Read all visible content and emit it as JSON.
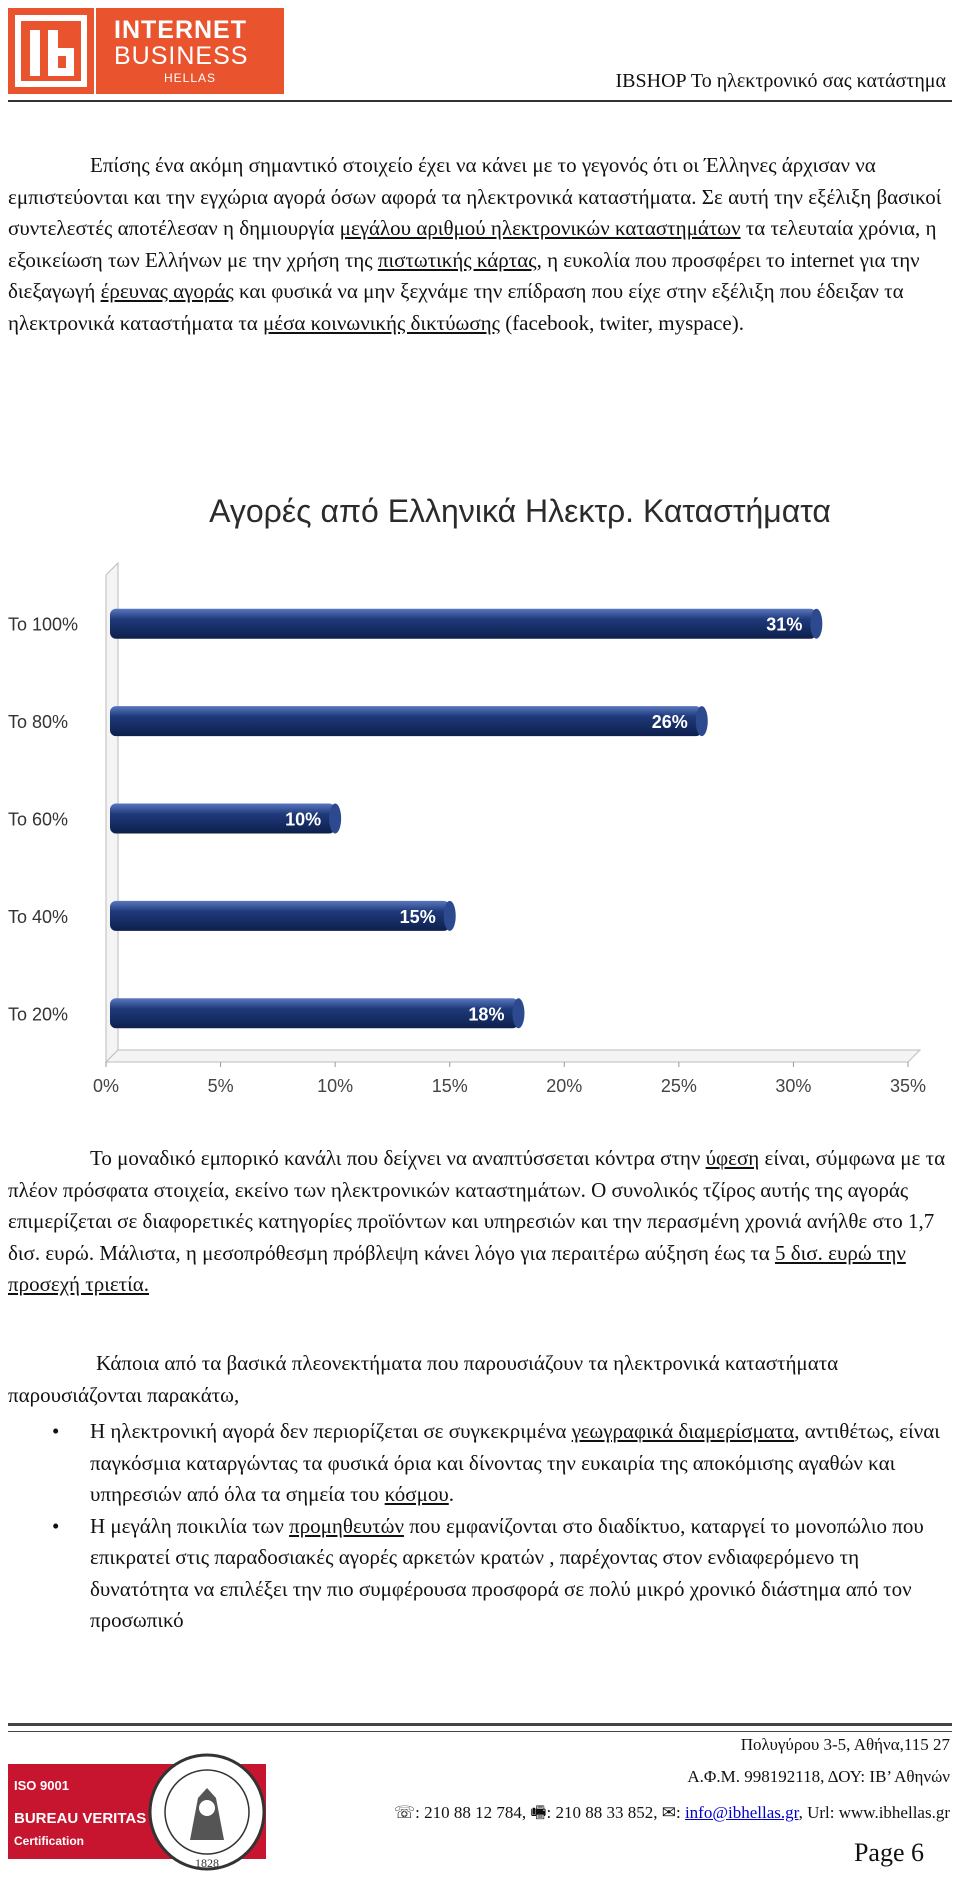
{
  "header": {
    "logo_line1": "INTERNET",
    "logo_line2": "BUSINESS",
    "logo_line3": "HELLAS",
    "title": "IBSHOP Το ηλεκτρονικό σας κατάστημα"
  },
  "para1": {
    "t1": "Επίσης ένα ακόμη σημαντικό στοιχείο έχει να κάνει με το γεγονός ότι οι Έλληνες άρχισαν να εμπιστεύονται και την εγχώρια αγορά όσων αφορά τα ηλεκτρονικά καταστήματα. Σε αυτή την εξέλιξη βασικοί συντελεστές αποτέλεσαν η δημιουργία ",
    "link1": "μεγάλου αριθμού ηλεκτρονικών καταστημάτων",
    "t2": " τα τελευταία χρόνια, η εξοικείωση των Ελλήνων με την χρήση της ",
    "link2": "πιστωτικής κάρτας",
    "t3": ", η ευκολία που προσφέρει το internet για την διεξαγωγή ",
    "link3": "έρευνας αγοράς",
    "t4": " και φυσικά να μην ξεχνάμε την επίδραση που είχε στην εξέλιξη που έδειξαν τα ηλεκτρονικά καταστήματα τα ",
    "link4": "μέσα κοινωνικής δικτύωσης",
    "t5": " (facebook, twiter, myspace)."
  },
  "chart_data": {
    "type": "bar",
    "orientation": "horizontal",
    "title": "Αγορές από Ελληνικά Ηλεκτρ. Καταστήματα",
    "categories": [
      "Το 100%",
      "Το 80%",
      "Το 60%",
      "Το 40%",
      "Το 20%"
    ],
    "values": [
      31,
      26,
      10,
      15,
      18
    ],
    "data_labels": [
      "31%",
      "26%",
      "10%",
      "15%",
      "18%"
    ],
    "x_ticks": [
      "0%",
      "5%",
      "10%",
      "15%",
      "20%",
      "25%",
      "30%",
      "35%"
    ],
    "xlim": [
      0,
      35
    ],
    "bar_color": "#1f3a7a",
    "grid": false,
    "legend": "none"
  },
  "para2": {
    "t1": "Το μοναδικό εμπορικό κανάλι που δείχνει να αναπτύσσεται κόντρα στην ",
    "link1": "ύφεση",
    "t2": " είναι, σύμφωνα με τα πλέον πρόσφατα στοιχεία, εκείνο των ηλεκτρονικών καταστημάτων. Ο συνολικός τζίρος αυτής της αγοράς επιμερίζεται σε διαφορετικές κατηγορίες προϊόντων και υπηρεσιών και την περασμένη χρονιά ανήλθε στο 1,7 δισ. ευρώ. Μάλιστα, η μεσοπρόθεσμη πρόβλεψη κάνει λόγο για περαιτέρω αύξηση έως τα ",
    "link2": "5 δισ. ευρώ την προσεχή τριετία."
  },
  "para3": "Κάποια από τα βασικά πλεονεκτήματα που παρουσιάζουν τα ηλεκτρονικά καταστήματα παρουσιάζονται παρακάτω,",
  "bullets": [
    {
      "t1": "Η ηλεκτρονική αγορά δεν περιορίζεται σε συγκεκριμένα ",
      "link1": "γεωγραφικά διαμερίσματα",
      "t2": ", αντιθέτως, είναι παγκόσμια καταργώντας τα φυσικά όρια και δίνοντας την ευκαιρία της αποκόμισης αγαθών και υπηρεσιών από όλα τα σημεία του ",
      "link2": "κόσμου",
      "t3": "."
    },
    {
      "t1": "Η μεγάλη ποικιλία των ",
      "link1": "προμηθευτών",
      "t2": " που εμφανίζονται στο διαδίκτυο, καταργεί το μονοπώλιο που επικρατεί στις παραδοσιακές αγορές αρκετών κρατών , παρέχοντας στον ενδιαφερόμενο τη δυνατότητα να επιλέξει την πιο συμφέρουσα προσφορά σε πολύ μικρό χρονικό διάστημα από τον προσωπικό",
      "link2": "",
      "t3": ""
    }
  ],
  "footer": {
    "address": "Πολυγύρου 3-5, Αθήνα,115 27",
    "tax": "Α.Φ.Μ. 998192118, ΔΟΥ: ΙΒ’ Αθηνών",
    "phone_icon": "☏",
    "phone": ": 210 88 12 784, ",
    "fax_icon": "🖷",
    "fax": ": 210 88 33 852, ",
    "mail_icon": "✉",
    "mail_prefix": ": ",
    "email": "info@ibhellas.gr",
    "url": ", Url: www.ibhellas.gr",
    "iso_line1": "ISO 9001",
    "iso_line2": "BUREAU VERITAS",
    "iso_line3": "Certification",
    "seal_year": "1828",
    "page": "Page 6"
  }
}
